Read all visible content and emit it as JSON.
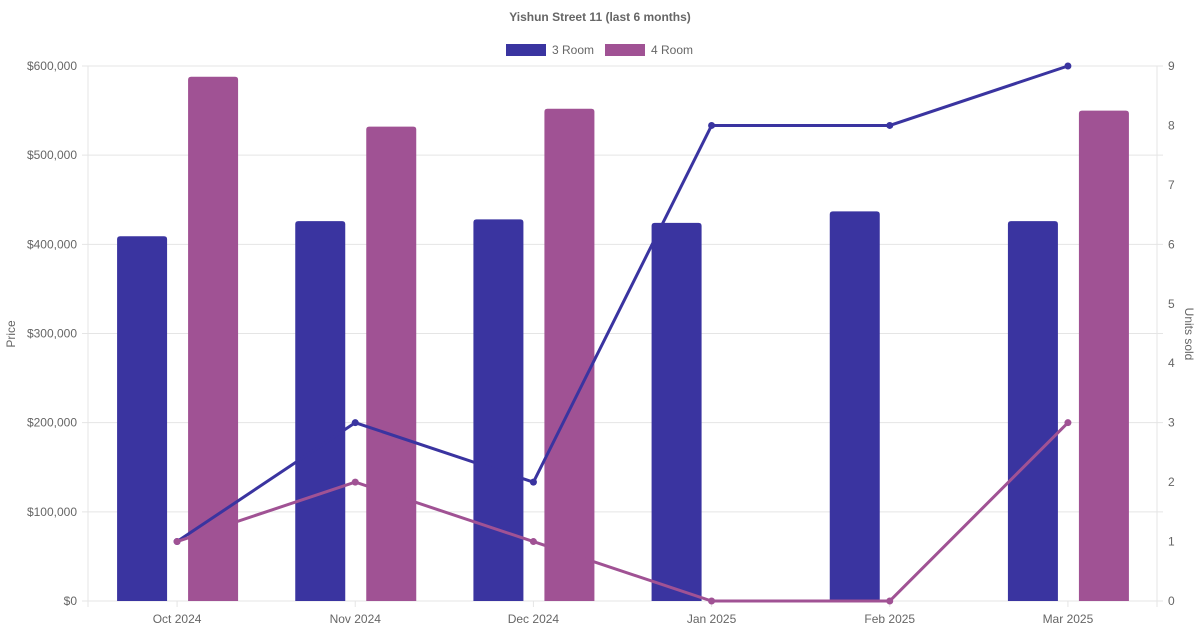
{
  "chart_data": {
    "type": "bar",
    "title": "Yishun Street 11 (last 6 months)",
    "categories": [
      "Oct 2024",
      "Nov 2024",
      "Dec 2024",
      "Jan 2025",
      "Feb 2025",
      "Mar 2025"
    ],
    "ylabel": "Price",
    "y2label": "Units sold",
    "ylim": [
      0,
      600000
    ],
    "y2lim": [
      0,
      9
    ],
    "yticks": [
      "$0",
      "$100,000",
      "$200,000",
      "$300,000",
      "$400,000",
      "$500,000",
      "$600,000"
    ],
    "y2ticks": [
      "0",
      "1",
      "2",
      "3",
      "4",
      "5",
      "6",
      "7",
      "8",
      "9"
    ],
    "legend": [
      "3 Room",
      "4 Room"
    ],
    "legend_position": "top",
    "grid": true,
    "series": [
      {
        "name": "3 Room",
        "kind": "bar",
        "axis": "price",
        "color": "#3a34a0",
        "values": [
          409000,
          426000,
          428000,
          424000,
          437000,
          426000
        ]
      },
      {
        "name": "4 Room",
        "kind": "bar",
        "axis": "price",
        "color": "#a05294",
        "values": [
          588000,
          532000,
          552000,
          null,
          null,
          550000
        ]
      },
      {
        "name": "3 Room",
        "kind": "line",
        "axis": "units",
        "color": "#3a34a0",
        "values": [
          1,
          3,
          2,
          8,
          8,
          9
        ]
      },
      {
        "name": "4 Room",
        "kind": "line",
        "axis": "units",
        "color": "#a05294",
        "values": [
          1,
          2,
          1,
          0,
          0,
          3
        ]
      }
    ]
  }
}
